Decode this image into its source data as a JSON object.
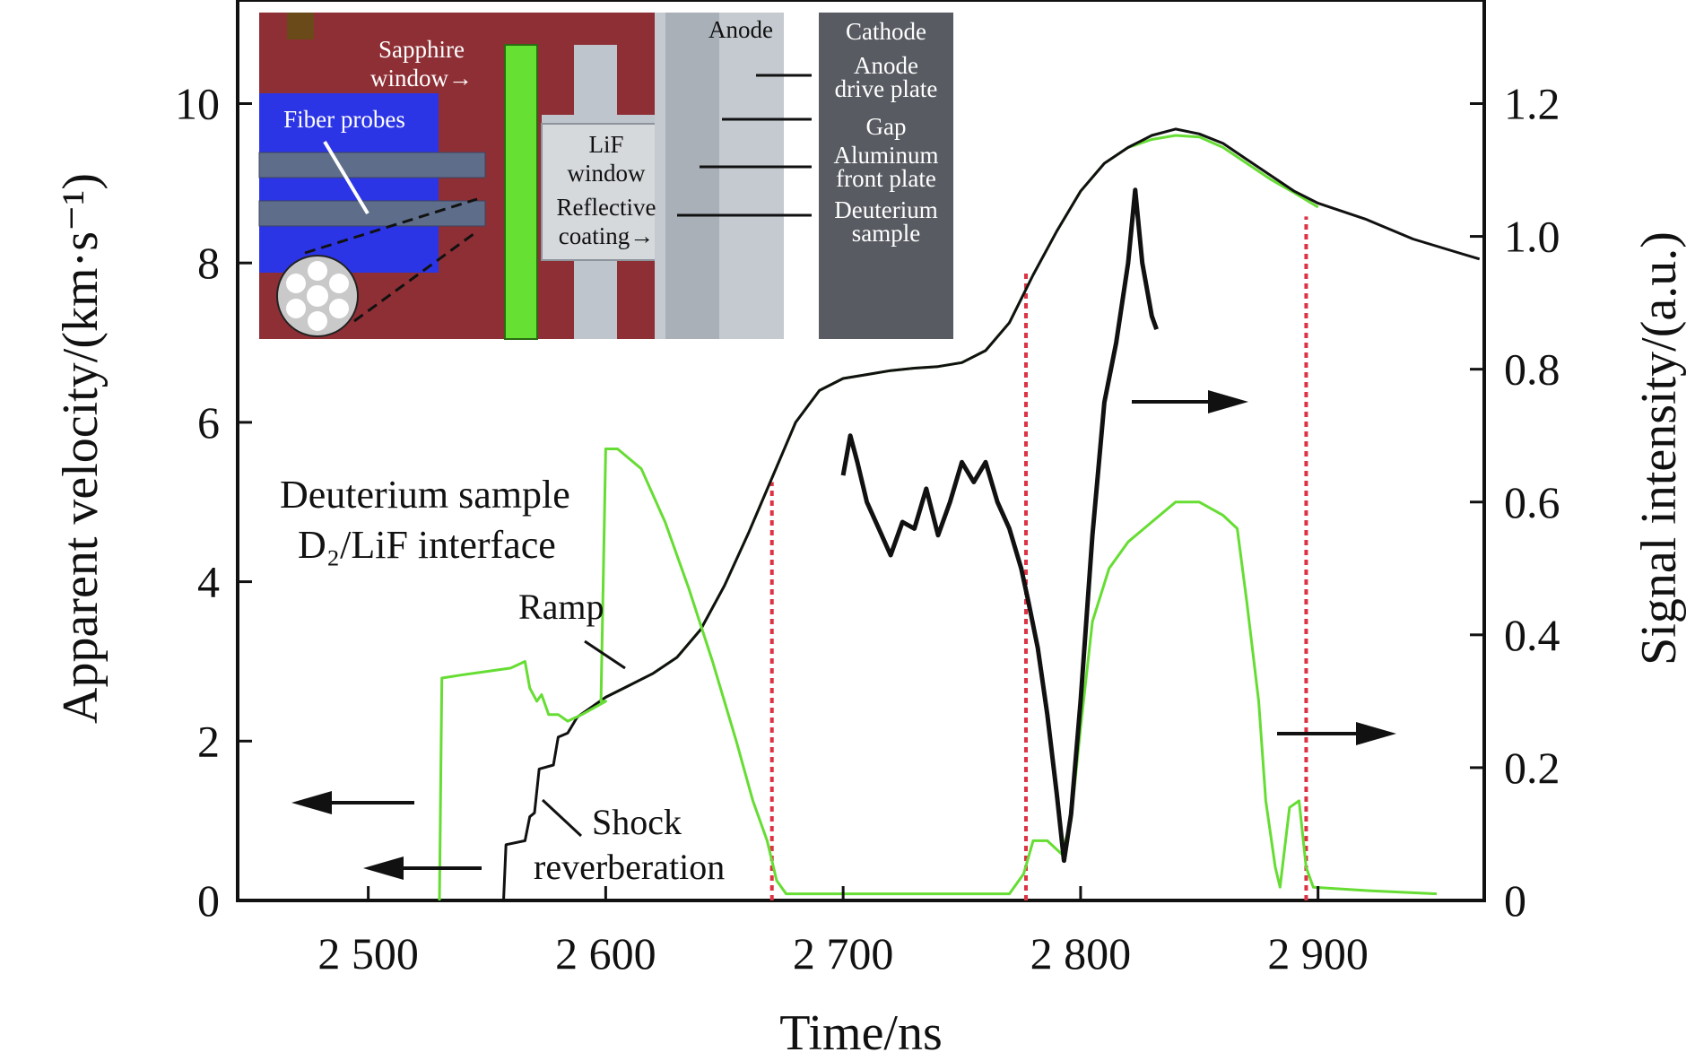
{
  "chart_data": {
    "type": "line",
    "xlabel": "Time/ns",
    "ylabel_left": "Apparent velocity/(km·s⁻¹)",
    "ylabel_right": "Signal intensity/(a.u.)",
    "xlim": [
      2445,
      2970
    ],
    "ylim_left": [
      0,
      11.3
    ],
    "ylim_right": [
      0,
      1.356
    ],
    "x_ticks": [
      2500,
      2600,
      2700,
      2800,
      2900
    ],
    "x_tick_labels": [
      "2 500",
      "2 600",
      "2 700",
      "2 800",
      "2 900"
    ],
    "y_left_ticks": [
      0,
      2,
      4,
      6,
      8,
      10
    ],
    "y_left_tick_labels": [
      "0",
      "2",
      "4",
      "6",
      "8",
      "10"
    ],
    "y_right_ticks": [
      0,
      0.2,
      0.4,
      0.6,
      0.8,
      1.0,
      1.2
    ],
    "y_right_tick_labels": [
      "0",
      "0.2",
      "0.4",
      "0.6",
      "0.8",
      "1.0",
      "1.2"
    ],
    "grid": false,
    "legend": [
      {
        "label": "Deuterium sample",
        "color": "#66dd33"
      },
      {
        "label": "D₂/LiF interface",
        "color": "#111111"
      }
    ],
    "series": [
      {
        "axis": "left",
        "color": "#66dd33",
        "points": [
          [
            2600,
            2.55
          ],
          [
            2610,
            2.7
          ],
          [
            2620,
            2.85
          ],
          [
            2630,
            3.05
          ],
          [
            2640,
            3.4
          ],
          [
            2650,
            3.95
          ],
          [
            2660,
            4.6
          ],
          [
            2670,
            5.3
          ],
          [
            2680,
            6.0
          ],
          [
            2690,
            6.4
          ],
          [
            2700,
            6.55
          ],
          [
            2710,
            6.6
          ],
          [
            2720,
            6.65
          ],
          [
            2730,
            6.68
          ],
          [
            2740,
            6.7
          ],
          [
            2750,
            6.75
          ],
          [
            2760,
            6.9
          ],
          [
            2770,
            7.25
          ],
          [
            2780,
            7.85
          ],
          [
            2790,
            8.4
          ],
          [
            2800,
            8.9
          ],
          [
            2810,
            9.25
          ],
          [
            2820,
            9.45
          ],
          [
            2830,
            9.55
          ],
          [
            2840,
            9.6
          ],
          [
            2850,
            9.58
          ],
          [
            2860,
            9.45
          ],
          [
            2870,
            9.25
          ],
          [
            2880,
            9.05
          ],
          [
            2890,
            8.88
          ],
          [
            2900,
            8.7
          ]
        ]
      },
      {
        "axis": "left",
        "color": "#111111",
        "points": [
          [
            2557,
            0
          ],
          [
            2558,
            0.7
          ],
          [
            2566,
            0.75
          ],
          [
            2568,
            1.05
          ],
          [
            2570,
            1.1
          ],
          [
            2572,
            1.65
          ],
          [
            2578,
            1.7
          ],
          [
            2580,
            2.05
          ],
          [
            2584,
            2.1
          ],
          [
            2588,
            2.3
          ],
          [
            2600,
            2.55
          ],
          [
            2610,
            2.7
          ],
          [
            2620,
            2.85
          ],
          [
            2630,
            3.05
          ],
          [
            2640,
            3.4
          ],
          [
            2650,
            3.95
          ],
          [
            2660,
            4.6
          ],
          [
            2670,
            5.3
          ],
          [
            2680,
            6.0
          ],
          [
            2690,
            6.4
          ],
          [
            2700,
            6.55
          ],
          [
            2710,
            6.6
          ],
          [
            2720,
            6.65
          ],
          [
            2730,
            6.68
          ],
          [
            2740,
            6.7
          ],
          [
            2750,
            6.75
          ],
          [
            2760,
            6.9
          ],
          [
            2770,
            7.25
          ],
          [
            2780,
            7.85
          ],
          [
            2790,
            8.4
          ],
          [
            2800,
            8.9
          ],
          [
            2810,
            9.25
          ],
          [
            2820,
            9.45
          ],
          [
            2830,
            9.6
          ],
          [
            2840,
            9.68
          ],
          [
            2850,
            9.62
          ],
          [
            2860,
            9.5
          ],
          [
            2870,
            9.3
          ],
          [
            2880,
            9.1
          ],
          [
            2890,
            8.9
          ],
          [
            2900,
            8.75
          ],
          [
            2920,
            8.55
          ],
          [
            2940,
            8.3
          ],
          [
            2960,
            8.12
          ],
          [
            2968,
            8.05
          ]
        ]
      },
      {
        "axis": "right",
        "color": "#66dd33",
        "points": [
          [
            2530,
            0
          ],
          [
            2531,
            0.335
          ],
          [
            2540,
            0.34
          ],
          [
            2550,
            0.345
          ],
          [
            2560,
            0.35
          ],
          [
            2566,
            0.36
          ],
          [
            2568,
            0.32
          ],
          [
            2571,
            0.3
          ],
          [
            2573,
            0.31
          ],
          [
            2576,
            0.28
          ],
          [
            2580,
            0.28
          ],
          [
            2584,
            0.27
          ],
          [
            2590,
            0.28
          ],
          [
            2595,
            0.29
          ],
          [
            2600,
            0.3
          ],
          [
            2598,
            0.3
          ],
          [
            2600,
            0.68
          ],
          [
            2605,
            0.68
          ],
          [
            2615,
            0.65
          ],
          [
            2625,
            0.57
          ],
          [
            2635,
            0.47
          ],
          [
            2645,
            0.36
          ],
          [
            2655,
            0.24
          ],
          [
            2662,
            0.15
          ],
          [
            2668,
            0.09
          ],
          [
            2672,
            0.03
          ],
          [
            2676,
            0.01
          ],
          [
            2700,
            0.01
          ],
          [
            2740,
            0.01
          ],
          [
            2770,
            0.01
          ],
          [
            2776,
            0.04
          ],
          [
            2780,
            0.09
          ],
          [
            2786,
            0.09
          ],
          [
            2792,
            0.07
          ],
          [
            2796,
            0.12
          ],
          [
            2800,
            0.26
          ],
          [
            2805,
            0.42
          ],
          [
            2812,
            0.5
          ],
          [
            2820,
            0.54
          ],
          [
            2830,
            0.57
          ],
          [
            2840,
            0.6
          ],
          [
            2850,
            0.6
          ],
          [
            2860,
            0.58
          ],
          [
            2866,
            0.56
          ],
          [
            2870,
            0.45
          ],
          [
            2875,
            0.3
          ],
          [
            2878,
            0.15
          ],
          [
            2882,
            0.05
          ],
          [
            2884,
            0.02
          ],
          [
            2888,
            0.14
          ],
          [
            2892,
            0.15
          ],
          [
            2895,
            0.05
          ],
          [
            2898,
            0.02
          ],
          [
            2920,
            0.015
          ],
          [
            2950,
            0.01
          ]
        ]
      },
      {
        "axis": "right",
        "color": "#111111",
        "points": [
          [
            2700,
            0.64
          ],
          [
            2703,
            0.7
          ],
          [
            2706,
            0.66
          ],
          [
            2710,
            0.6
          ],
          [
            2715,
            0.56
          ],
          [
            2720,
            0.52
          ],
          [
            2725,
            0.57
          ],
          [
            2730,
            0.56
          ],
          [
            2735,
            0.62
          ],
          [
            2740,
            0.55
          ],
          [
            2745,
            0.6
          ],
          [
            2750,
            0.66
          ],
          [
            2755,
            0.63
          ],
          [
            2760,
            0.66
          ],
          [
            2765,
            0.6
          ],
          [
            2770,
            0.56
          ],
          [
            2775,
            0.5
          ],
          [
            2778,
            0.45
          ],
          [
            2782,
            0.38
          ],
          [
            2786,
            0.28
          ],
          [
            2790,
            0.16
          ],
          [
            2793,
            0.06
          ],
          [
            2796,
            0.13
          ],
          [
            2800,
            0.3
          ],
          [
            2805,
            0.55
          ],
          [
            2810,
            0.75
          ],
          [
            2815,
            0.84
          ],
          [
            2820,
            0.96
          ],
          [
            2823,
            1.07
          ],
          [
            2826,
            0.96
          ],
          [
            2830,
            0.88
          ],
          [
            2832,
            0.86
          ]
        ]
      }
    ],
    "vlines": [
      2670,
      2777,
      2895
    ],
    "vline_color": "#dd3344",
    "annotations": [
      {
        "text": "Ramp"
      },
      {
        "text": "Shock"
      },
      {
        "text": "reverberation"
      }
    ],
    "inset": {
      "labels": {
        "sapphire_1": "Sapphire",
        "sapphire_2": "window→",
        "fiber": "Fiber probes",
        "lif_1": "LiF",
        "lif_2": "window",
        "refl_1": "Reflective",
        "refl_2": "coating→",
        "anode": "Anode",
        "cathode": "Cathode",
        "drive_1": "Anode",
        "drive_2": "drive plate",
        "gap": "Gap",
        "front_1": "Aluminum",
        "front_2": "front plate",
        "deut_1": "Deuterium",
        "deut_2": "sample"
      }
    }
  }
}
